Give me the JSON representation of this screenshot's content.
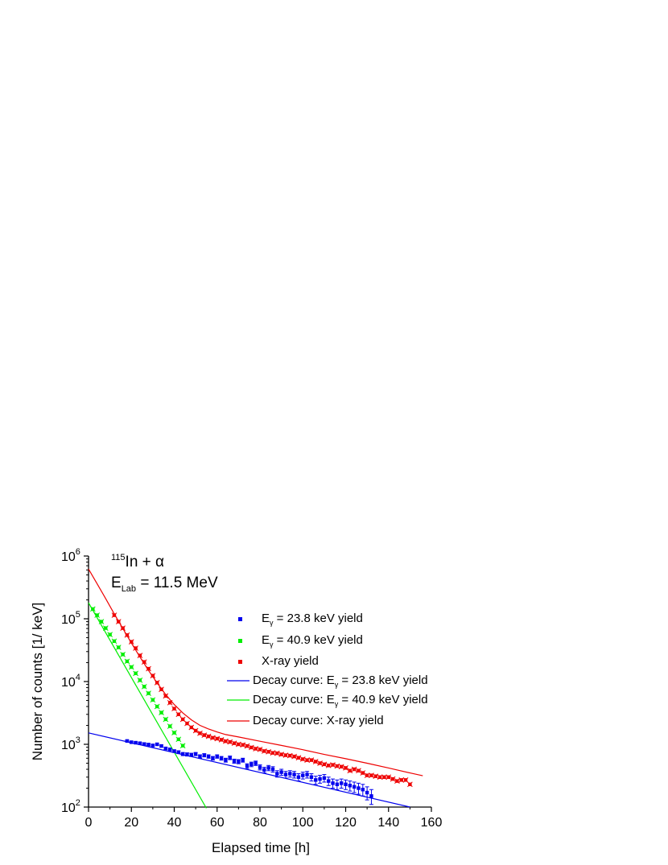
{
  "chart_data": {
    "type": "scatter",
    "xlabel": "Elapsed time [h]",
    "ylabel": "Number of counts [1/ keV]",
    "xlim": [
      0,
      160
    ],
    "ylim": [
      100,
      1000000
    ],
    "yscale": "log",
    "x_ticks": [
      "0",
      "20",
      "40",
      "60",
      "80",
      "100",
      "120",
      "140",
      "160"
    ],
    "y_ticks": [
      {
        "base": "10",
        "exp": "2",
        "value": 100
      },
      {
        "base": "10",
        "exp": "3",
        "value": 1000
      },
      {
        "base": "10",
        "exp": "4",
        "value": 10000
      },
      {
        "base": "10",
        "exp": "5",
        "value": 100000
      },
      {
        "base": "10",
        "exp": "6",
        "value": 1000000
      }
    ],
    "annotation": {
      "line1": {
        "sup": "115",
        "text": "In + α"
      },
      "line2": {
        "main": "E",
        "sub": "Lab",
        "rest": " = 11.5 MeV"
      }
    },
    "legend_position": "upper-right",
    "legend": [
      {
        "kind": "marker",
        "color": "#0000ee",
        "pre": "E",
        "sub": "γ",
        "post": " = 23.8 keV yield"
      },
      {
        "kind": "marker",
        "color": "#00ee00",
        "pre": "E",
        "sub": "γ",
        "post": " = 40.9 keV yield"
      },
      {
        "kind": "marker",
        "color": "#ee0000",
        "pre": "X-ray yield",
        "sub": "",
        "post": ""
      },
      {
        "kind": "line",
        "color": "#0000ee",
        "pre": "Decay curve: E",
        "sub": "γ",
        "post": " = 23.8 keV yield"
      },
      {
        "kind": "line",
        "color": "#00ee00",
        "pre": "Decay curve: E",
        "sub": "γ",
        "post": " = 40.9 keV yield"
      },
      {
        "kind": "line",
        "color": "#ee0000",
        "pre": "Decay curve: X-ray yield",
        "sub": "",
        "post": ""
      }
    ],
    "series": [
      {
        "name": "E_γ = 23.8 keV yield",
        "color": "#0000ee",
        "x": [
          18,
          20,
          22,
          24,
          26,
          28,
          30,
          32,
          34,
          36,
          38,
          40,
          42,
          44,
          46,
          48,
          50,
          52,
          54,
          56,
          58,
          60,
          62,
          64,
          66,
          68,
          70,
          72,
          74,
          76,
          78,
          80,
          82,
          84,
          86,
          88,
          90,
          92,
          94,
          96,
          98,
          100,
          102,
          104,
          106,
          108,
          110,
          112,
          114,
          116,
          118,
          120,
          122,
          124,
          126,
          128,
          130,
          132
        ],
        "y": [
          1130,
          1080,
          1060,
          1040,
          1010,
          990,
          960,
          1000,
          940,
          860,
          830,
          780,
          750,
          700,
          690,
          680,
          700,
          640,
          670,
          640,
          600,
          640,
          600,
          560,
          610,
          540,
          530,
          560,
          450,
          480,
          500,
          430,
          390,
          420,
          400,
          340,
          360,
          330,
          340,
          330,
          300,
          320,
          330,
          300,
          270,
          280,
          290,
          260,
          240,
          230,
          240,
          230,
          220,
          210,
          200,
          190,
          170,
          150
        ],
        "err": [
          35,
          35,
          35,
          35,
          35,
          35,
          35,
          35,
          35,
          35,
          35,
          35,
          40,
          40,
          40,
          40,
          40,
          40,
          40,
          40,
          40,
          40,
          40,
          40,
          40,
          40,
          40,
          40,
          40,
          40,
          40,
          40,
          40,
          40,
          40,
          40,
          40,
          40,
          40,
          40,
          40,
          40,
          40,
          40,
          40,
          40,
          40,
          40,
          40,
          40,
          40,
          40,
          40,
          40,
          40,
          40,
          40,
          40
        ]
      },
      {
        "name": "E_γ = 40.9 keV yield",
        "color": "#00ee00",
        "x": [
          2,
          4,
          6,
          8,
          10,
          12,
          14,
          16,
          18,
          20,
          22,
          24,
          26,
          28,
          30,
          32,
          34,
          36,
          38,
          40,
          42,
          44
        ],
        "y": [
          143000,
          114000,
          90000,
          71000,
          56000,
          44000,
          35000,
          27000,
          21000,
          17000,
          13500,
          10500,
          8300,
          6500,
          5100,
          4000,
          3200,
          2500,
          1940,
          1530,
          1200,
          950
        ]
      },
      {
        "name": "X-ray yield",
        "color": "#ee0000",
        "x": [
          12,
          14,
          16,
          18,
          20,
          22,
          24,
          26,
          28,
          30,
          32,
          34,
          36,
          38,
          40,
          42,
          44,
          46,
          48,
          50,
          52,
          54,
          56,
          58,
          60,
          62,
          64,
          66,
          68,
          70,
          72,
          74,
          76,
          78,
          80,
          82,
          84,
          86,
          88,
          90,
          92,
          94,
          96,
          98,
          100,
          102,
          104,
          106,
          108,
          110,
          112,
          114,
          116,
          118,
          120,
          122,
          124,
          126,
          128,
          130,
          132,
          134,
          136,
          138,
          140,
          142,
          144,
          146,
          148,
          150
        ],
        "y": [
          114000,
          90000,
          71000,
          55000,
          43000,
          34000,
          26000,
          20500,
          16000,
          12400,
          9600,
          7500,
          5900,
          4600,
          3700,
          3000,
          2500,
          2150,
          1860,
          1650,
          1500,
          1400,
          1340,
          1270,
          1230,
          1180,
          1120,
          1090,
          1040,
          1000,
          980,
          940,
          890,
          850,
          830,
          780,
          760,
          730,
          720,
          690,
          670,
          660,
          640,
          610,
          580,
          560,
          560,
          530,
          500,
          480,
          460,
          470,
          450,
          440,
          420,
          380,
          400,
          380,
          350,
          320,
          320,
          310,
          300,
          300,
          300,
          280,
          260,
          270,
          270,
          230
        ]
      }
    ],
    "fits": [
      {
        "name": "Decay curve: E_γ = 23.8 keV yield",
        "color": "#0000ee",
        "x": [
          0,
          150
        ],
        "y": [
          1520,
          100
        ]
      },
      {
        "name": "Decay curve: E_γ = 40.9 keV yield",
        "color": "#00ee00",
        "x": [
          0,
          55
        ],
        "y": [
          180000,
          96
        ]
      },
      {
        "name": "Decay curve: X-ray yield",
        "color": "#ee0000",
        "x": [
          0,
          4,
          8,
          12,
          16,
          20,
          24,
          28,
          32,
          36,
          40,
          44,
          48,
          52,
          56,
          60,
          64,
          70,
          80,
          90,
          100,
          110,
          120,
          130,
          140,
          150,
          156
        ],
        "y": [
          620000,
          360000,
          210000,
          120000,
          70000,
          41000,
          24500,
          15000,
          9500,
          6200,
          4300,
          3150,
          2450,
          2000,
          1750,
          1570,
          1430,
          1310,
          1120,
          960,
          820,
          690,
          590,
          500,
          420,
          350,
          315
        ]
      }
    ]
  }
}
